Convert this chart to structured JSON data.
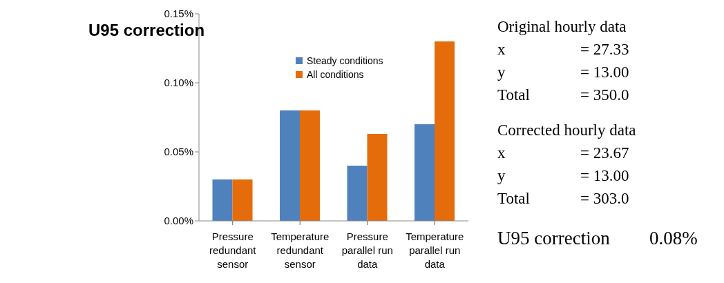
{
  "chart_data": {
    "type": "bar",
    "title": "U95 correction",
    "categories": [
      "Pressure redundant sensor",
      "Temperature redundant sensor",
      "Pressure parallel run data",
      "Temperature parallel run data"
    ],
    "series": [
      {
        "name": "Steady conditions",
        "color": "#4f81bd",
        "values": [
          0.03,
          0.08,
          0.04,
          0.07
        ]
      },
      {
        "name": "All conditions",
        "color": "#e46c0a",
        "values": [
          0.03,
          0.08,
          0.063,
          0.13
        ]
      }
    ],
    "ylim": [
      0,
      0.15
    ],
    "yticks": [
      {
        "value": 0,
        "label": "0.00%"
      },
      {
        "value": 0.05,
        "label": "0.05%"
      },
      {
        "value": 0.1,
        "label": "0.10%"
      },
      {
        "value": 0.15,
        "label": "0.15%"
      }
    ],
    "grid": false,
    "legend": "top right",
    "annotations": [
      "Original hourly data",
      "x",
      "= 27.33",
      "y",
      "= 13.00",
      "Total",
      "= 350.0",
      "Corrected hourly data",
      "x",
      "= 23.67",
      "y",
      "= 13.00",
      "Total",
      "= 303.0",
      "U95 correction",
      "0.08%"
    ]
  }
}
